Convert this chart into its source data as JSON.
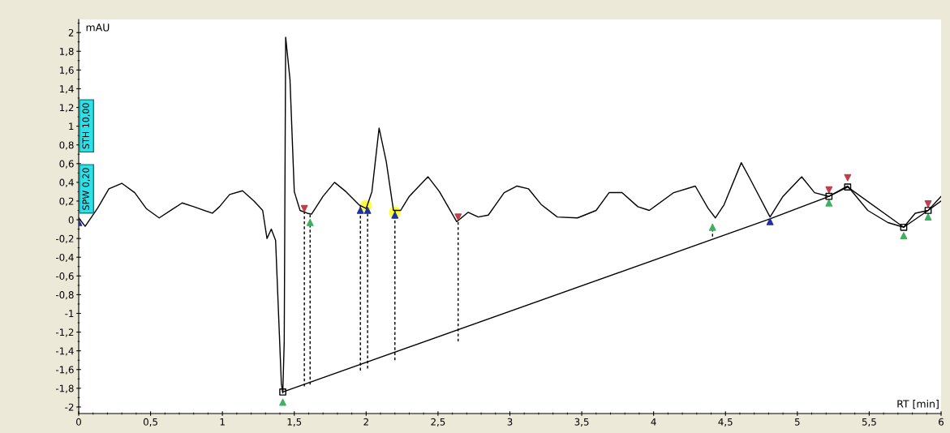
{
  "chart_data": {
    "type": "line",
    "xlabel": "RT [min]",
    "ylabel": "mAU",
    "annotations": [
      "STH 10,00",
      "SPW 0,20"
    ],
    "xlim": [
      0,
      6
    ],
    "ylim": [
      -2.07,
      2.14
    ],
    "xticks": [
      0,
      {
        "value": 0.5,
        "label": "0,5"
      },
      1,
      {
        "value": 1.5,
        "label": "1,5"
      },
      2,
      {
        "value": 2.5,
        "label": "2,5"
      },
      3,
      {
        "value": 3.5,
        "label": "3,5"
      },
      4,
      {
        "value": 4.5,
        "label": "4,5"
      },
      5,
      {
        "value": 5.5,
        "label": "5,5"
      },
      6
    ],
    "yticks": [
      -2,
      {
        "value": -1.8,
        "label": "-1,8"
      },
      {
        "value": -1.6,
        "label": "-1,6"
      },
      {
        "value": -1.4,
        "label": "-1,4"
      },
      {
        "value": -1.2,
        "label": "-1,2"
      },
      -1,
      {
        "value": -0.8,
        "label": "-0,8"
      },
      {
        "value": -0.6,
        "label": "-0,6"
      },
      {
        "value": -0.4,
        "label": "-0,4"
      },
      {
        "value": -0.2,
        "label": "-0,2"
      },
      0,
      {
        "value": 0.2,
        "label": "0,2"
      },
      {
        "value": 0.4,
        "label": "0,4"
      },
      {
        "value": 0.6,
        "label": "0,6"
      },
      {
        "value": 0.8,
        "label": "0,8"
      },
      1,
      {
        "value": 1.2,
        "label": "1,2"
      },
      {
        "value": 1.4,
        "label": "1,4"
      },
      {
        "value": 1.6,
        "label": "1,6"
      },
      {
        "value": 1.8,
        "label": "1,8"
      },
      2
    ],
    "grid": false,
    "legend": false,
    "series": [
      {
        "color": "#000000",
        "x": [
          0,
          0.045,
          0.13,
          0.21,
          0.3,
          0.39,
          0.47,
          0.56,
          0.66,
          0.72,
          0.8,
          0.93,
          0.98,
          1.05,
          1.14,
          1.22,
          1.28,
          1.31,
          1.34,
          1.37,
          1.41,
          1.42,
          1.43,
          1.44,
          1.47,
          1.5,
          1.54,
          1.59,
          1.62,
          1.7,
          1.78,
          1.86,
          1.95,
          2.0,
          2.04,
          2.09,
          2.14,
          2.19,
          2.24,
          2.3,
          2.43,
          2.51,
          2.63,
          2.71,
          2.78,
          2.85,
          2.96,
          3.05,
          3.13,
          3.22,
          3.33,
          3.47,
          3.52,
          3.6,
          3.69,
          3.78,
          3.89,
          3.97,
          4.14,
          4.29,
          4.38,
          4.43,
          4.49,
          4.61,
          4.67,
          4.81,
          4.9,
          5.03,
          5.12,
          5.22,
          5.35,
          5.49,
          5.63,
          5.74,
          5.82,
          5.91,
          6.0
        ],
        "values": [
          0.02,
          -0.07,
          0.12,
          0.33,
          0.39,
          0.29,
          0.12,
          0.02,
          0.12,
          0.18,
          0.14,
          0.07,
          0.14,
          0.27,
          0.31,
          0.2,
          0.1,
          -0.2,
          -0.1,
          -0.22,
          -1.75,
          -1.85,
          -1.3,
          1.95,
          1.5,
          0.3,
          0.1,
          0.07,
          0.06,
          0.25,
          0.4,
          0.3,
          0.16,
          0.12,
          0.3,
          0.98,
          0.62,
          0.1,
          0.1,
          0.25,
          0.46,
          0.3,
          -0.02,
          0.08,
          0.03,
          0.05,
          0.29,
          0.36,
          0.33,
          0.16,
          0.03,
          0.02,
          0.05,
          0.1,
          0.29,
          0.29,
          0.14,
          0.1,
          0.29,
          0.36,
          0.12,
          0.02,
          0.16,
          0.61,
          0.44,
          0.03,
          0.25,
          0.46,
          0.29,
          0.25,
          0.36,
          0.1,
          -0.03,
          -0.08,
          0.07,
          0.1,
          0.25
        ]
      },
      {
        "color": "#000000",
        "x": [
          1.42,
          4.81,
          5.22,
          5.35,
          5.74,
          5.91,
          6.0
        ],
        "values": [
          -1.84,
          0.01,
          0.25,
          0.35,
          -0.08,
          0.1,
          0.2
        ]
      },
      {
        "type": "line",
        "color": "#000000",
        "line_style": "dashed",
        "x": [
          1.57,
          1.57
        ],
        "values": [
          -1.78,
          0.08
        ]
      },
      {
        "type": "line",
        "color": "#000000",
        "line_style": "dashed",
        "x": [
          1.61,
          1.61
        ],
        "values": [
          -1.76,
          0.06
        ]
      },
      {
        "type": "line",
        "color": "#000000",
        "line_style": "dashed",
        "x": [
          1.96,
          1.96
        ],
        "values": [
          -1.61,
          0.15
        ]
      },
      {
        "type": "line",
        "color": "#000000",
        "line_style": "dashed",
        "x": [
          2.01,
          2.01
        ],
        "values": [
          -1.59,
          0.13
        ]
      },
      {
        "type": "line",
        "color": "#000000",
        "line_style": "dashed",
        "x": [
          2.2,
          2.2
        ],
        "values": [
          -1.5,
          0.1
        ]
      },
      {
        "type": "line",
        "color": "#000000",
        "line_style": "dashed",
        "x": [
          2.64,
          2.64
        ],
        "values": [
          -1.3,
          -0.02
        ]
      },
      {
        "type": "line",
        "color": "#000000",
        "line_style": "dashed",
        "x": [
          4.41,
          4.41
        ],
        "values": [
          -0.18,
          -0.05
        ]
      },
      {
        "type": "scatter",
        "color": "#ffff40",
        "marker": "circle",
        "x": [
          2.0,
          2.2
        ],
        "values": [
          0.15,
          0.08
        ]
      },
      {
        "type": "scatter",
        "color": "#c0404a",
        "marker": "triangle_down",
        "x": [
          1.57,
          2.64,
          5.22,
          5.35,
          5.91
        ],
        "values": [
          0.12,
          0.03,
          0.32,
          0.45,
          0.17
        ]
      },
      {
        "type": "scatter",
        "color": "#40b060",
        "marker": "triangle",
        "x": [
          1.61,
          1.42,
          4.41,
          5.22,
          5.74,
          5.91
        ],
        "values": [
          -0.03,
          -1.95,
          -0.08,
          0.18,
          -0.17,
          0.03
        ]
      },
      {
        "type": "scatter",
        "color": "#2030a0",
        "marker": "triangle",
        "x": [
          0,
          1.96,
          2.01,
          2.2,
          4.81
        ],
        "values": [
          -0.03,
          0.1,
          0.1,
          0.05,
          -0.02
        ]
      },
      {
        "type": "scatter",
        "color": "#000000",
        "marker": "square",
        "x": [
          1.42,
          5.22,
          5.35,
          5.74,
          5.91
        ],
        "values": [
          -1.84,
          0.25,
          0.35,
          -0.08,
          0.1
        ]
      }
    ]
  }
}
